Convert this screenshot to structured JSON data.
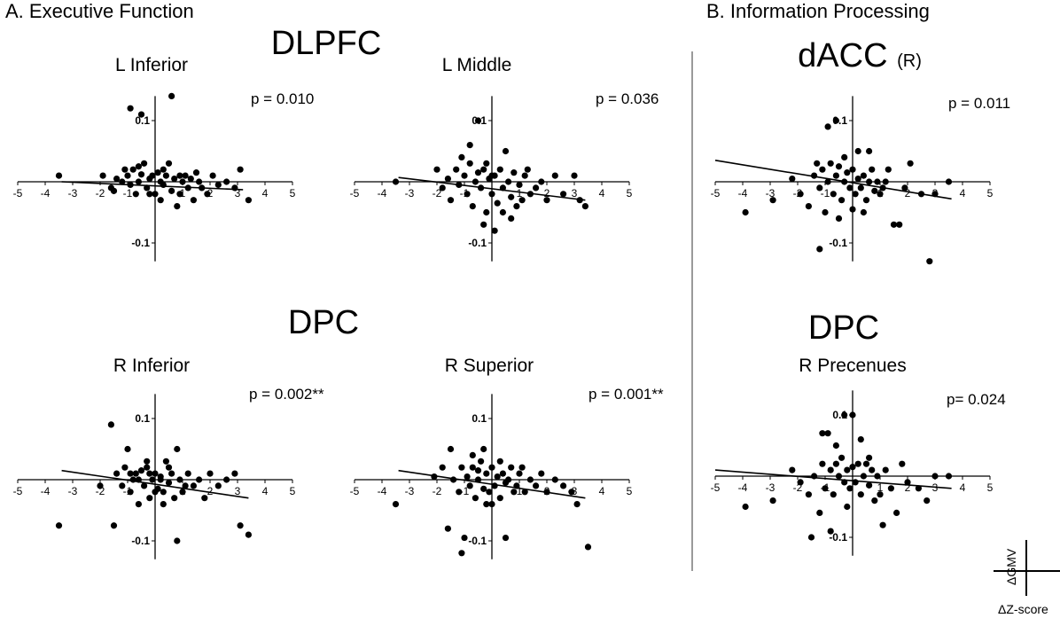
{
  "sections": {
    "a_title": "A. Executive Function",
    "b_title": "B.  Information Processing"
  },
  "regions": {
    "dlpfc": "DLPFC",
    "dpc_a": "DPC",
    "dacc": "dACC",
    "dacc_side": "(R)",
    "dpc_b": "DPC"
  },
  "key": {
    "ylabel": "ΔGMV",
    "xlabel": "ΔZ-score"
  },
  "chart_data": [
    {
      "id": "l-inferior",
      "type": "scatter",
      "title": "L Inferior",
      "annotation": "p = 0.010",
      "xlim": [
        -5,
        5
      ],
      "ylim": [
        -0.13,
        0.14
      ],
      "xticks": [
        -5,
        -4,
        -3,
        -2,
        -1,
        1,
        2,
        3,
        4,
        5
      ],
      "yticks": [
        0.1,
        -0.1
      ],
      "trend": {
        "x": [
          -3.4,
          3.2
        ],
        "y": [
          0.0,
          -0.013
        ]
      },
      "points": [
        [
          -3.5,
          0.01
        ],
        [
          -1.9,
          0.01
        ],
        [
          -1.6,
          -0.01
        ],
        [
          -1.5,
          -0.015
        ],
        [
          -1.4,
          0.005
        ],
        [
          -1.2,
          0.0
        ],
        [
          -1.0,
          0.01
        ],
        [
          -0.9,
          -0.005
        ],
        [
          -0.8,
          0.02
        ],
        [
          -0.7,
          -0.02
        ],
        [
          -0.6,
          0.0
        ],
        [
          -0.5,
          0.012
        ],
        [
          -0.4,
          0.03
        ],
        [
          -0.3,
          -0.01
        ],
        [
          -0.2,
          0.005
        ],
        [
          -0.1,
          0.01
        ],
        [
          0.0,
          -0.02
        ],
        [
          0.1,
          0.015
        ],
        [
          0.2,
          0.0
        ],
        [
          0.3,
          -0.005
        ],
        [
          0.4,
          0.01
        ],
        [
          0.5,
          0.03
        ],
        [
          0.6,
          -0.015
        ],
        [
          0.7,
          0.005
        ],
        [
          0.8,
          -0.04
        ],
        [
          0.9,
          -0.02
        ],
        [
          1.0,
          0.0
        ],
        [
          1.1,
          0.01
        ],
        [
          1.2,
          -0.01
        ],
        [
          1.3,
          0.005
        ],
        [
          1.4,
          -0.03
        ],
        [
          1.5,
          0.015
        ],
        [
          1.7,
          -0.01
        ],
        [
          1.9,
          -0.02
        ],
        [
          2.1,
          0.01
        ],
        [
          2.3,
          -0.005
        ],
        [
          2.6,
          0.0
        ],
        [
          3.1,
          0.02
        ],
        [
          3.4,
          -0.03
        ],
        [
          -0.9,
          0.12
        ],
        [
          -0.5,
          0.11
        ],
        [
          0.6,
          0.14
        ],
        [
          -0.2,
          -0.02
        ],
        [
          0.2,
          -0.03
        ],
        [
          -1.1,
          0.02
        ],
        [
          1.6,
          0.0
        ],
        [
          0.9,
          0.01
        ],
        [
          -0.6,
          0.025
        ],
        [
          0.3,
          0.02
        ],
        [
          2.9,
          -0.01
        ]
      ]
    },
    {
      "id": "l-middle",
      "type": "scatter",
      "title": "L Middle",
      "annotation": "p = 0.036",
      "xlim": [
        -5,
        5
      ],
      "ylim": [
        -0.13,
        0.14
      ],
      "xticks": [
        -5,
        -4,
        -3,
        -2,
        -1,
        1,
        2,
        3,
        4,
        5
      ],
      "yticks": [
        0.1,
        -0.1
      ],
      "trend": {
        "x": [
          -3.4,
          3.4
        ],
        "y": [
          0.007,
          -0.03
        ]
      },
      "points": [
        [
          -3.5,
          0.0
        ],
        [
          -2.0,
          0.02
        ],
        [
          -1.8,
          -0.01
        ],
        [
          -1.6,
          0.005
        ],
        [
          -1.5,
          -0.03
        ],
        [
          -1.3,
          0.02
        ],
        [
          -1.2,
          -0.005
        ],
        [
          -1.0,
          0.01
        ],
        [
          -0.9,
          -0.02
        ],
        [
          -0.8,
          0.03
        ],
        [
          -0.7,
          -0.04
        ],
        [
          -0.6,
          0.0
        ],
        [
          -0.5,
          0.015
        ],
        [
          -0.4,
          -0.01
        ],
        [
          -0.3,
          0.02
        ],
        [
          -0.2,
          -0.05
        ],
        [
          -0.1,
          0.005
        ],
        [
          0.0,
          -0.02
        ],
        [
          0.1,
          0.01
        ],
        [
          0.2,
          -0.035
        ],
        [
          0.3,
          0.02
        ],
        [
          0.4,
          -0.01
        ],
        [
          0.5,
          0.05
        ],
        [
          0.6,
          0.0
        ],
        [
          0.7,
          -0.025
        ],
        [
          0.8,
          0.015
        ],
        [
          0.9,
          -0.04
        ],
        [
          1.0,
          -0.005
        ],
        [
          1.2,
          0.01
        ],
        [
          1.4,
          -0.02
        ],
        [
          1.6,
          -0.01
        ],
        [
          1.8,
          0.0
        ],
        [
          2.0,
          -0.03
        ],
        [
          2.3,
          0.01
        ],
        [
          2.6,
          -0.02
        ],
        [
          3.0,
          0.01
        ],
        [
          3.2,
          -0.03
        ],
        [
          3.4,
          -0.04
        ],
        [
          -0.5,
          0.1
        ],
        [
          -0.3,
          -0.07
        ],
        [
          0.1,
          -0.08
        ],
        [
          -0.8,
          0.06
        ],
        [
          0.7,
          -0.06
        ],
        [
          -1.1,
          0.04
        ],
        [
          1.3,
          0.02
        ],
        [
          0.0,
          0.01
        ],
        [
          -0.2,
          0.03
        ],
        [
          0.4,
          -0.05
        ],
        [
          1.1,
          -0.03
        ]
      ]
    },
    {
      "id": "r-inferior",
      "type": "scatter",
      "title": "R Inferior",
      "annotation": "p = 0.002**",
      "xlim": [
        -5,
        5
      ],
      "ylim": [
        -0.13,
        0.14
      ],
      "xticks": [
        -5,
        -4,
        -3,
        -2,
        -1,
        1,
        2,
        3,
        4,
        5
      ],
      "yticks": [
        0.1,
        -0.1
      ],
      "trend": {
        "x": [
          -3.4,
          3.4
        ],
        "y": [
          0.015,
          -0.03
        ]
      },
      "points": [
        [
          -3.5,
          -0.075
        ],
        [
          -2.0,
          -0.01
        ],
        [
          -1.6,
          0.09
        ],
        [
          -1.5,
          -0.075
        ],
        [
          -1.4,
          0.01
        ],
        [
          -1.2,
          -0.01
        ],
        [
          -1.1,
          0.02
        ],
        [
          -1.0,
          0.05
        ],
        [
          -0.9,
          -0.02
        ],
        [
          -0.8,
          0.0
        ],
        [
          -0.7,
          0.01
        ],
        [
          -0.6,
          -0.04
        ],
        [
          -0.5,
          0.015
        ],
        [
          -0.4,
          -0.01
        ],
        [
          -0.3,
          0.02
        ],
        [
          -0.2,
          -0.03
        ],
        [
          -0.1,
          0.0
        ],
        [
          0.0,
          0.01
        ],
        [
          0.1,
          -0.015
        ],
        [
          0.2,
          0.005
        ],
        [
          0.3,
          -0.02
        ],
        [
          0.4,
          0.03
        ],
        [
          0.5,
          -0.005
        ],
        [
          0.6,
          0.01
        ],
        [
          0.7,
          -0.03
        ],
        [
          0.8,
          0.05
        ],
        [
          0.9,
          0.0
        ],
        [
          1.0,
          -0.02
        ],
        [
          1.2,
          0.01
        ],
        [
          1.4,
          -0.01
        ],
        [
          1.6,
          0.0
        ],
        [
          1.8,
          -0.03
        ],
        [
          2.0,
          0.01
        ],
        [
          2.3,
          -0.01
        ],
        [
          2.6,
          0.0
        ],
        [
          2.9,
          0.01
        ],
        [
          3.1,
          -0.075
        ],
        [
          3.4,
          -0.09
        ],
        [
          0.8,
          -0.1
        ],
        [
          -0.3,
          0.03
        ],
        [
          0.2,
          0.0
        ],
        [
          -0.6,
          0.0
        ],
        [
          0.5,
          0.02
        ],
        [
          -0.9,
          0.01
        ],
        [
          1.1,
          -0.01
        ],
        [
          0.0,
          -0.02
        ],
        [
          -0.2,
          0.01
        ],
        [
          0.3,
          -0.04
        ]
      ]
    },
    {
      "id": "r-superior",
      "type": "scatter",
      "title": "R Superior",
      "annotation": "p = 0.001**",
      "xlim": [
        -5,
        5
      ],
      "ylim": [
        -0.13,
        0.14
      ],
      "xticks": [
        -5,
        -4,
        -3,
        -2,
        -1,
        1,
        2,
        3,
        4,
        5
      ],
      "yticks": [
        0.1,
        -0.1
      ],
      "trend": {
        "x": [
          -3.4,
          3.4
        ],
        "y": [
          0.015,
          -0.03
        ]
      },
      "points": [
        [
          -3.5,
          -0.04
        ],
        [
          -2.1,
          0.005
        ],
        [
          -1.8,
          0.02
        ],
        [
          -1.6,
          -0.08
        ],
        [
          -1.5,
          0.05
        ],
        [
          -1.4,
          0.0
        ],
        [
          -1.2,
          -0.02
        ],
        [
          -1.1,
          0.02
        ],
        [
          -1.0,
          -0.095
        ],
        [
          -0.9,
          0.005
        ],
        [
          -0.8,
          -0.01
        ],
        [
          -0.7,
          0.02
        ],
        [
          -0.6,
          -0.03
        ],
        [
          -0.5,
          0.0
        ],
        [
          -0.4,
          0.03
        ],
        [
          -0.3,
          -0.015
        ],
        [
          -0.2,
          0.01
        ],
        [
          -0.1,
          -0.02
        ],
        [
          0.0,
          0.02
        ],
        [
          0.1,
          -0.01
        ],
        [
          0.2,
          0.005
        ],
        [
          0.3,
          -0.03
        ],
        [
          0.4,
          0.01
        ],
        [
          0.5,
          -0.095
        ],
        [
          0.6,
          0.0
        ],
        [
          0.7,
          0.02
        ],
        [
          0.8,
          -0.02
        ],
        [
          0.9,
          -0.01
        ],
        [
          1.0,
          0.01
        ],
        [
          1.2,
          -0.02
        ],
        [
          1.4,
          0.0
        ],
        [
          1.6,
          -0.01
        ],
        [
          1.8,
          0.01
        ],
        [
          2.0,
          -0.02
        ],
        [
          2.3,
          0.0
        ],
        [
          2.6,
          -0.01
        ],
        [
          2.9,
          -0.02
        ],
        [
          3.1,
          -0.04
        ],
        [
          3.5,
          -0.11
        ],
        [
          -1.1,
          -0.12
        ],
        [
          -0.3,
          0.05
        ],
        [
          0.3,
          0.03
        ],
        [
          -0.7,
          0.04
        ],
        [
          1.1,
          0.02
        ],
        [
          0.0,
          -0.04
        ],
        [
          -0.5,
          0.015
        ],
        [
          0.5,
          -0.005
        ],
        [
          -0.2,
          -0.04
        ]
      ]
    },
    {
      "id": "dacc",
      "type": "scatter",
      "title": "",
      "annotation": "p = 0.011",
      "xlim": [
        -5,
        5
      ],
      "ylim": [
        -0.13,
        0.14
      ],
      "xticks": [
        -5,
        -4,
        -3,
        -2,
        -1,
        1,
        2,
        3,
        4,
        5
      ],
      "yticks": [
        0.1,
        -0.1
      ],
      "trend": {
        "x": [
          -5.0,
          3.6
        ],
        "y": [
          0.035,
          -0.028
        ]
      },
      "points": [
        [
          -3.9,
          -0.05
        ],
        [
          -2.9,
          -0.03
        ],
        [
          -2.2,
          0.005
        ],
        [
          -1.9,
          -0.02
        ],
        [
          -1.6,
          -0.04
        ],
        [
          -1.4,
          0.01
        ],
        [
          -1.2,
          -0.01
        ],
        [
          -1.1,
          0.02
        ],
        [
          -1.0,
          -0.05
        ],
        [
          -0.9,
          0.0
        ],
        [
          -0.8,
          0.03
        ],
        [
          -0.7,
          -0.02
        ],
        [
          -0.6,
          0.01
        ],
        [
          -0.5,
          0.025
        ],
        [
          -0.4,
          -0.03
        ],
        [
          -0.3,
          0.0
        ],
        [
          -0.2,
          0.015
        ],
        [
          -0.1,
          -0.01
        ],
        [
          0.0,
          0.02
        ],
        [
          0.1,
          -0.02
        ],
        [
          0.2,
          0.005
        ],
        [
          0.3,
          -0.01
        ],
        [
          0.4,
          0.01
        ],
        [
          0.5,
          -0.03
        ],
        [
          0.6,
          0.0
        ],
        [
          0.7,
          0.02
        ],
        [
          0.8,
          -0.015
        ],
        [
          0.9,
          0.0
        ],
        [
          1.0,
          -0.02
        ],
        [
          1.1,
          -0.01
        ],
        [
          1.3,
          0.02
        ],
        [
          1.5,
          -0.07
        ],
        [
          1.7,
          -0.07
        ],
        [
          1.9,
          -0.01
        ],
        [
          2.1,
          0.03
        ],
        [
          2.5,
          -0.02
        ],
        [
          3.0,
          -0.02
        ],
        [
          3.5,
          0.0
        ],
        [
          2.8,
          -0.13
        ],
        [
          -1.2,
          -0.11
        ],
        [
          -0.9,
          0.09
        ],
        [
          -0.6,
          0.1
        ],
        [
          -0.3,
          0.04
        ],
        [
          0.2,
          0.05
        ],
        [
          0.6,
          0.05
        ],
        [
          -1.3,
          0.03
        ],
        [
          1.2,
          0.0
        ],
        [
          0.0,
          -0.045
        ],
        [
          0.4,
          -0.05
        ],
        [
          -0.5,
          -0.06
        ]
      ]
    },
    {
      "id": "r-precenues",
      "type": "scatter",
      "title": "R Precenues",
      "annotation": "p= 0.024",
      "xlim": [
        -5,
        5
      ],
      "ylim": [
        -0.13,
        0.14
      ],
      "xticks": [
        -5,
        -4,
        -3,
        -2,
        -1,
        1,
        2,
        3,
        4,
        5
      ],
      "yticks": [
        0.1,
        -0.1
      ],
      "trend": {
        "x": [
          -5.0,
          3.6
        ],
        "y": [
          0.01,
          -0.02
        ]
      },
      "points": [
        [
          -3.9,
          -0.05
        ],
        [
          -2.9,
          -0.04
        ],
        [
          -2.2,
          0.01
        ],
        [
          -1.9,
          -0.01
        ],
        [
          -1.6,
          -0.03
        ],
        [
          -1.4,
          0.0
        ],
        [
          -1.2,
          -0.06
        ],
        [
          -1.1,
          0.02
        ],
        [
          -1.0,
          -0.02
        ],
        [
          -0.9,
          0.07
        ],
        [
          -0.8,
          0.01
        ],
        [
          -0.7,
          -0.03
        ],
        [
          -0.6,
          0.02
        ],
        [
          -0.5,
          0.0
        ],
        [
          -0.4,
          0.03
        ],
        [
          -0.3,
          -0.01
        ],
        [
          -0.2,
          0.01
        ],
        [
          -0.1,
          -0.02
        ],
        [
          0.0,
          0.015
        ],
        [
          0.1,
          -0.01
        ],
        [
          0.2,
          0.02
        ],
        [
          0.3,
          -0.03
        ],
        [
          0.4,
          0.0
        ],
        [
          0.5,
          0.02
        ],
        [
          0.6,
          -0.015
        ],
        [
          0.7,
          0.01
        ],
        [
          0.8,
          -0.04
        ],
        [
          0.9,
          0.0
        ],
        [
          1.0,
          -0.03
        ],
        [
          1.2,
          0.01
        ],
        [
          1.4,
          -0.02
        ],
        [
          1.6,
          -0.06
        ],
        [
          1.8,
          0.02
        ],
        [
          2.0,
          -0.01
        ],
        [
          2.4,
          -0.02
        ],
        [
          2.7,
          -0.04
        ],
        [
          3.0,
          0.0
        ],
        [
          3.5,
          0.0
        ],
        [
          -1.5,
          -0.1
        ],
        [
          -0.8,
          -0.09
        ],
        [
          0.0,
          0.1
        ],
        [
          -0.3,
          0.1
        ],
        [
          -0.6,
          0.05
        ],
        [
          0.3,
          0.06
        ],
        [
          1.1,
          -0.08
        ],
        [
          -1.1,
          0.07
        ],
        [
          0.6,
          0.03
        ],
        [
          -0.2,
          -0.05
        ]
      ]
    }
  ]
}
